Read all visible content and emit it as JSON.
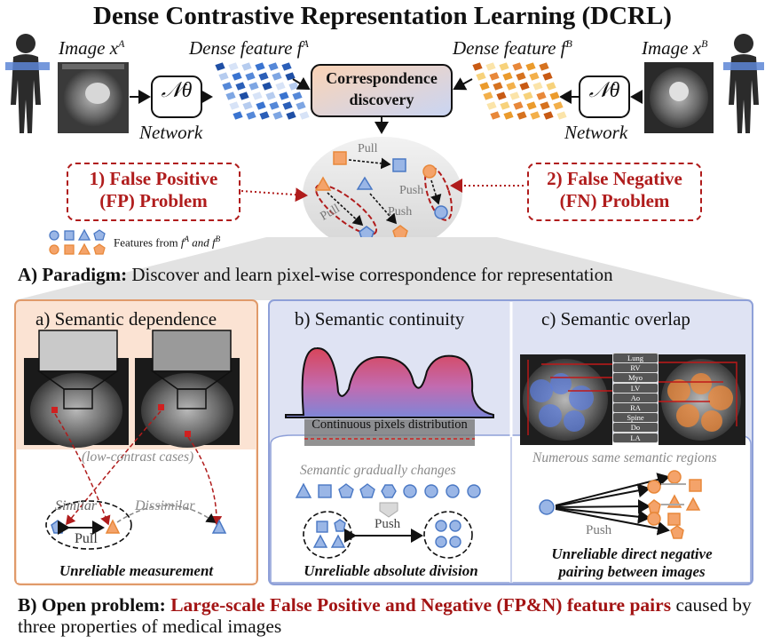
{
  "title": "Dense Contrastive Representation Learning (DCRL)",
  "top": {
    "image_a": "Image x",
    "image_a_sup": "A",
    "image_b": "Image x",
    "image_b_sup": "B",
    "feat_a": "Dense feature f",
    "feat_a_sup": "A",
    "feat_b": "Dense feature f",
    "feat_b_sup": "B",
    "network_label": "Network",
    "network_symbol": "𝒩θ",
    "correspondence": "Correspondence discovery",
    "pull": "Pull",
    "push": "Push",
    "fp_line1": "1) False Positive",
    "fp_line2": "(FP) Problem",
    "fn_line1": "2) False Negative",
    "fn_line2": "(FN) Problem",
    "legend_prefix": "Features from ",
    "legend_fa": "f",
    "legend_fa_sup": "A",
    "legend_and": " and ",
    "legend_fb": "f",
    "legend_fb_sup": "B"
  },
  "paradigm": {
    "bold": "A) Paradigm:",
    "text": " Discover and learn pixel-wise correspondence for representation"
  },
  "panel_a": {
    "title": "a) Semantic dependence",
    "low_contrast": "(low-contrast cases)",
    "similar": "Similar",
    "dissimilar": "Dissimilar",
    "pull": "Pull",
    "caption": "Unreliable measurement"
  },
  "panel_b": {
    "title": "b) Semantic continuity",
    "distribution": "Continuous pixels distribution",
    "changes": "Semantic gradually changes",
    "push": "Push",
    "caption": "Unreliable absolute division"
  },
  "panel_c": {
    "title": "c) Semantic overlap",
    "organs": [
      "Lung",
      "RV",
      "Myo",
      "LV",
      "Ao",
      "RA",
      "Spine",
      "Do",
      "LA"
    ],
    "regions": "Numerous same semantic regions",
    "push": "Push",
    "caption_line1": "Unreliable direct negative",
    "caption_line2": "pairing between images"
  },
  "open_problem": {
    "bold": "B) Open problem:",
    "red": "Large-scale False Positive and Negative (FP&N) feature pairs",
    "rest": " caused by three properties of medical images"
  },
  "colors": {
    "accent_red": "#a31414",
    "blue_feature": "#4a78c4",
    "orange_feature": "#e8883a",
    "panel_a_bg": "#fbe3d3",
    "panel_bc_bg": "#dfe3f3"
  }
}
